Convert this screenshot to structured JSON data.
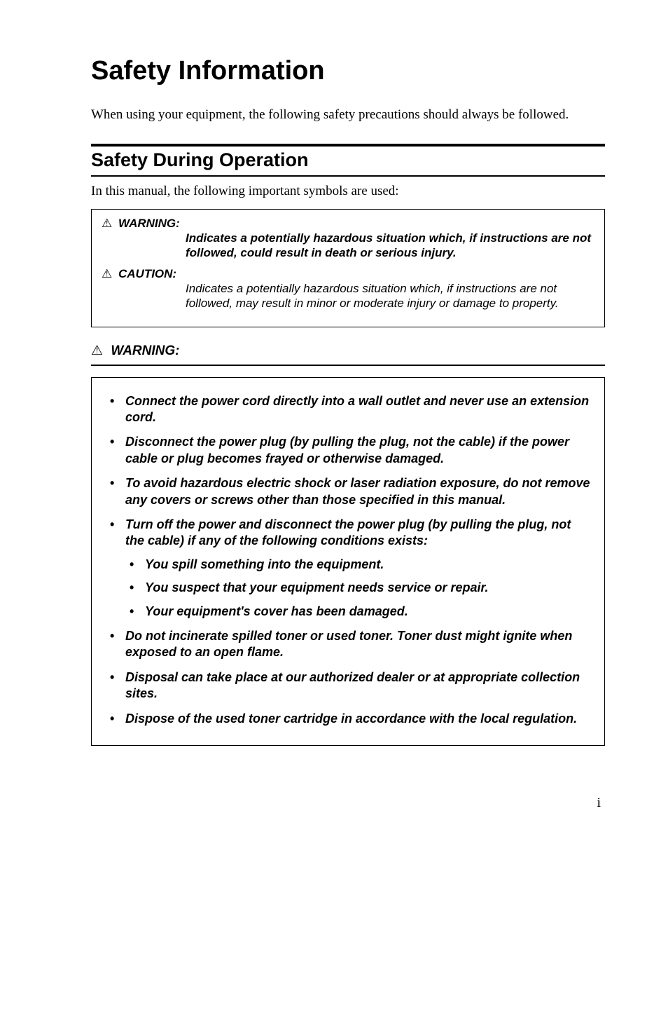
{
  "title": "Safety Information",
  "intro": "When using your equipment, the following safety precautions should always be followed.",
  "section_heading": "Safety During Operation",
  "subintro": "In this manual, the following important symbols are used:",
  "symbols": {
    "warning_label": "WARNING:",
    "warning_def": "Indicates a potentially hazardous situation which, if instructions are not followed, could result in death or serious injury.",
    "caution_label": "CAUTION:",
    "caution_def": "Indicates a potentially hazardous situation which, if instructions are not followed, may result in minor or moderate injury or damage to property."
  },
  "warning_heading": "WARNING:",
  "triangle": "⚠",
  "bullets": [
    "Connect the power cord directly into a wall outlet and never use an extension cord.",
    "Disconnect the power plug (by pulling the plug, not the cable) if the power cable or plug becomes frayed or otherwise damaged.",
    "To avoid hazardous electric shock or laser radiation exposure, do not remove any covers or screws other than those specified in this manual.",
    "Turn off the power and disconnect the power plug (by pulling the plug, not the cable) if any of the following conditions exists:",
    "Do not incinerate spilled toner or used toner. Toner dust might ignite when exposed to an open flame.",
    "Disposal can take place at our authorized dealer or at appropriate collection sites.",
    "Dispose of the used toner cartridge in accordance with the local regulation."
  ],
  "sub_bullets": [
    "You spill something into the equipment.",
    "You suspect that your equipment needs service or repair.",
    "Your equipment's cover has been damaged."
  ],
  "page_number": "i"
}
